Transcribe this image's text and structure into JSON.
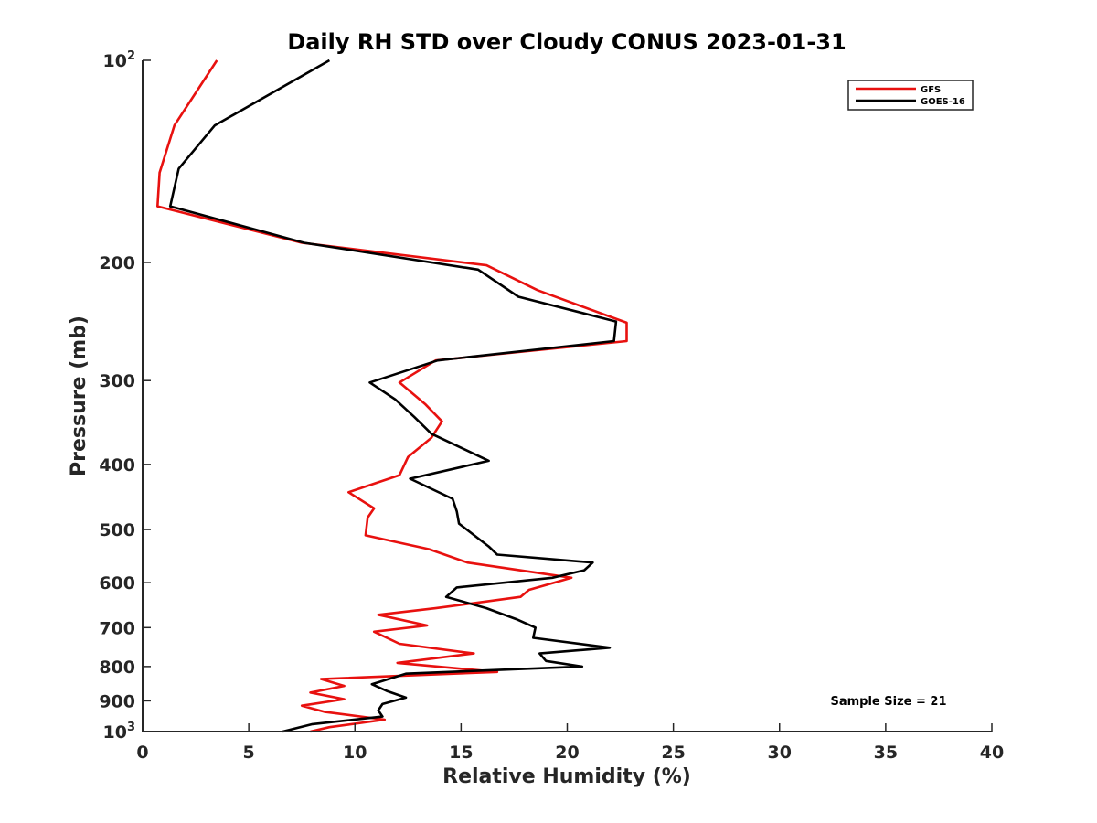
{
  "chart_data": {
    "type": "line",
    "title": "Daily RH STD over Cloudy CONUS 2023-01-31",
    "xlabel": "Relative Humidity (%)",
    "ylabel": "Pressure (mb)",
    "xlim": [
      0,
      40
    ],
    "ylim": [
      100,
      1000
    ],
    "y_scale": "log",
    "y_reversed": true,
    "grid": false,
    "legend_position": "top-right",
    "x_ticks": [
      "0",
      "5",
      "10",
      "15",
      "20",
      "25",
      "30",
      "35",
      "40"
    ],
    "y_ticks": [
      {
        "base": "10",
        "exp": "2"
      },
      {
        "base": "200",
        "exp": ""
      },
      {
        "base": "300",
        "exp": ""
      },
      {
        "base": "400",
        "exp": ""
      },
      {
        "base": "500",
        "exp": ""
      },
      {
        "base": "600",
        "exp": ""
      },
      {
        "base": "700",
        "exp": ""
      },
      {
        "base": "800",
        "exp": ""
      },
      {
        "base": "900",
        "exp": ""
      },
      {
        "base": "10",
        "exp": "3"
      }
    ],
    "annotation": "Sample Size = 21",
    "series": [
      {
        "name": "GFS",
        "color": "#e8110f",
        "x": [
          3.5,
          1.5,
          0.8,
          0.7,
          7.5,
          16.2,
          18.6,
          22.8,
          22.8,
          13.8,
          12.1,
          13.3,
          14.1,
          13.6,
          12.5,
          12.1,
          9.7,
          10.9,
          10.6,
          10.5,
          13.5,
          15.3,
          20.2,
          18.2,
          17.8,
          13.8,
          11.1,
          13.4,
          10.9,
          12.1,
          15.6,
          12.0,
          16.7,
          8.4,
          9.5,
          7.9,
          9.5,
          7.5,
          8.6,
          11.4,
          8.8,
          7.9
        ],
        "y": [
          100,
          125,
          147,
          165,
          187,
          202,
          220,
          246,
          262,
          280,
          302,
          325,
          345,
          365,
          390,
          415,
          440,
          465,
          480,
          510,
          535,
          560,
          590,
          615,
          630,
          655,
          670,
          695,
          710,
          740,
          765,
          790,
          815,
          835,
          855,
          875,
          895,
          915,
          935,
          960,
          985,
          1000
        ]
      },
      {
        "name": "GOES-16",
        "color": "#000000",
        "x": [
          8.8,
          3.4,
          1.7,
          1.3,
          7.6,
          15.8,
          17.7,
          22.3,
          22.2,
          13.9,
          10.7,
          11.9,
          12.8,
          13.6,
          16.3,
          12.6,
          14.6,
          14.8,
          14.9,
          16.3,
          16.7,
          21.2,
          20.8,
          19.3,
          14.8,
          14.3,
          16.2,
          17.6,
          18.5,
          18.4,
          22.0,
          18.7,
          19.0,
          20.7,
          12.4,
          10.8,
          11.5,
          12.4,
          11.3,
          11.1,
          11.3,
          8.0,
          6.6
        ],
        "y": [
          100,
          125,
          145,
          165,
          187,
          205,
          225,
          245,
          262,
          280,
          302,
          320,
          340,
          360,
          395,
          420,
          450,
          470,
          490,
          530,
          545,
          560,
          575,
          590,
          610,
          630,
          655,
          680,
          700,
          725,
          750,
          765,
          785,
          800,
          820,
          850,
          870,
          890,
          910,
          930,
          950,
          975,
          1000
        ]
      }
    ]
  }
}
